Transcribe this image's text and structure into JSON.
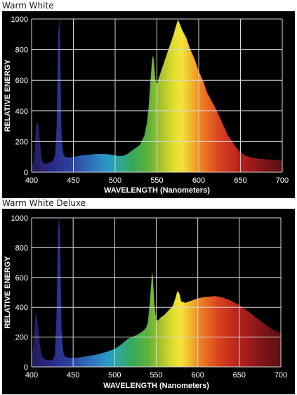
{
  "chart_data": [
    {
      "type": "area",
      "title": "Warm White",
      "xlabel": "WAVELENGTH (Nanometers)",
      "ylabel": "RELATIVE ENERGY",
      "xlim": [
        400,
        700
      ],
      "ylim": [
        0,
        1000
      ],
      "xticks": [
        400,
        450,
        500,
        550,
        600,
        650,
        700
      ],
      "yticks": [
        0,
        200,
        400,
        600,
        800,
        1000
      ],
      "grid": true,
      "x": [
        400,
        402,
        404,
        405,
        406,
        408,
        410,
        412,
        414,
        416,
        420,
        425,
        428,
        430,
        431,
        432,
        433,
        434,
        435,
        436,
        438,
        440,
        445,
        450,
        460,
        470,
        480,
        490,
        500,
        505,
        510,
        515,
        520,
        525,
        530,
        535,
        538,
        540,
        542,
        544,
        545,
        546,
        547,
        548,
        550,
        552,
        555,
        560,
        565,
        570,
        572,
        574,
        575,
        576,
        578,
        580,
        585,
        590,
        595,
        600,
        605,
        610,
        615,
        620,
        625,
        630,
        635,
        640,
        645,
        650,
        655,
        660,
        670,
        680,
        690,
        700
      ],
      "values": [
        30,
        60,
        180,
        290,
        330,
        310,
        200,
        90,
        60,
        55,
        60,
        70,
        110,
        300,
        620,
        900,
        1000,
        880,
        500,
        200,
        120,
        100,
        95,
        100,
        110,
        115,
        120,
        118,
        110,
        105,
        108,
        120,
        140,
        160,
        180,
        240,
        320,
        420,
        580,
        720,
        760,
        740,
        680,
        600,
        570,
        610,
        660,
        740,
        820,
        900,
        940,
        975,
        995,
        985,
        960,
        930,
        880,
        800,
        740,
        660,
        600,
        520,
        470,
        420,
        360,
        300,
        240,
        200,
        160,
        130,
        110,
        100,
        90,
        85,
        80,
        75
      ]
    },
    {
      "type": "area",
      "title": "Warm White Deluxe",
      "xlabel": "WAVELENGTH (Nanometers)",
      "ylabel": "RELATIVE ENERGY",
      "xlim": [
        400,
        700
      ],
      "ylim": [
        0,
        1000
      ],
      "xticks": [
        400,
        450,
        500,
        550,
        600,
        650,
        700
      ],
      "yticks": [
        0,
        200,
        400,
        600,
        800,
        1000
      ],
      "grid": true,
      "x": [
        400,
        402,
        404,
        405,
        406,
        408,
        410,
        412,
        414,
        416,
        420,
        425,
        428,
        430,
        431,
        432,
        433,
        434,
        435,
        436,
        438,
        440,
        445,
        450,
        460,
        470,
        480,
        490,
        500,
        505,
        510,
        515,
        520,
        525,
        530,
        535,
        538,
        540,
        542,
        544,
        545,
        546,
        547,
        548,
        550,
        552,
        555,
        560,
        565,
        570,
        573,
        575,
        576,
        578,
        580,
        585,
        590,
        595,
        600,
        605,
        610,
        615,
        620,
        625,
        630,
        635,
        640,
        645,
        650,
        655,
        660,
        665,
        670,
        675,
        680,
        685,
        690,
        695,
        700
      ],
      "values": [
        40,
        150,
        320,
        370,
        340,
        260,
        150,
        80,
        60,
        50,
        45,
        45,
        80,
        350,
        650,
        930,
        1000,
        900,
        600,
        250,
        100,
        70,
        60,
        60,
        65,
        75,
        85,
        100,
        120,
        140,
        160,
        185,
        200,
        210,
        225,
        245,
        265,
        300,
        420,
        560,
        640,
        600,
        500,
        400,
        320,
        310,
        330,
        350,
        380,
        410,
        460,
        500,
        510,
        490,
        440,
        430,
        440,
        450,
        460,
        465,
        470,
        472,
        475,
        472,
        465,
        455,
        445,
        430,
        415,
        395,
        375,
        355,
        330,
        310,
        290,
        270,
        250,
        240,
        225
      ]
    }
  ]
}
